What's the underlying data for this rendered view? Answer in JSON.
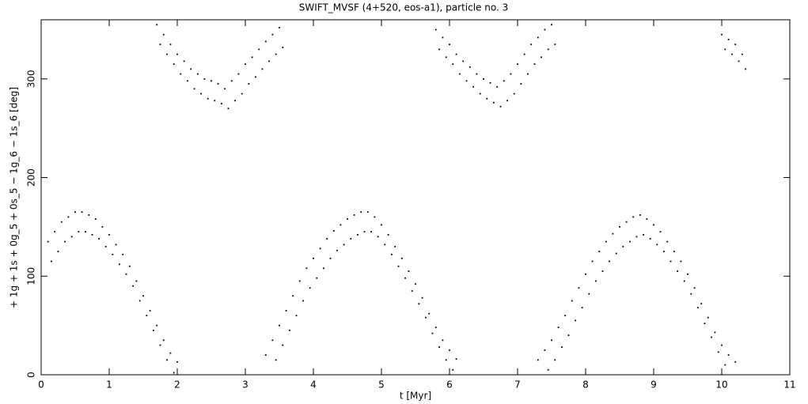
{
  "chart_data": {
    "type": "scatter",
    "title": "SWIFT_MVSF (4+520, eos-a1), particle no. 3",
    "x_label": "t [Myr]",
    "y_label": "+ 1g + 1s + 0g_5 + 0s_5 − 1g_6 − 1s_6 [deg]",
    "xlim": [
      0,
      11
    ],
    "ylim": [
      0,
      360
    ],
    "xticks": [
      0,
      1,
      2,
      3,
      4,
      5,
      6,
      7,
      8,
      9,
      10,
      11
    ],
    "yticks": [
      0,
      100,
      200,
      300
    ],
    "color": "#000000",
    "x": [
      0.1,
      0.2,
      0.3,
      0.4,
      0.5,
      0.6,
      0.7,
      0.8,
      0.9,
      1.0,
      1.1,
      1.2,
      1.3,
      1.4,
      1.5,
      1.6,
      1.7,
      1.8,
      1.9,
      2.0,
      0.15,
      0.25,
      0.35,
      0.45,
      0.55,
      0.65,
      0.75,
      0.85,
      0.95,
      1.05,
      1.15,
      1.25,
      1.35,
      1.45,
      1.55,
      1.65,
      1.75,
      1.85,
      1.95,
      1.7,
      1.8,
      1.9,
      2.0,
      2.1,
      2.2,
      2.3,
      2.4,
      2.5,
      2.6,
      2.7,
      2.8,
      2.9,
      3.0,
      3.1,
      3.2,
      3.3,
      3.4,
      3.5,
      1.75,
      1.85,
      1.95,
      2.05,
      2.15,
      2.25,
      2.35,
      2.45,
      2.55,
      2.65,
      2.75,
      2.85,
      2.95,
      3.05,
      3.15,
      3.25,
      3.35,
      3.45,
      3.55,
      3.3,
      3.4,
      3.5,
      3.6,
      3.7,
      3.8,
      3.9,
      4.0,
      4.1,
      4.2,
      4.3,
      4.4,
      4.5,
      4.6,
      4.7,
      4.8,
      4.9,
      5.0,
      5.1,
      5.2,
      5.3,
      5.4,
      5.5,
      5.6,
      5.7,
      5.8,
      5.9,
      6.0,
      6.1,
      3.45,
      3.55,
      3.65,
      3.75,
      3.85,
      3.95,
      4.05,
      4.15,
      4.25,
      4.35,
      4.45,
      4.55,
      4.65,
      4.75,
      4.85,
      4.95,
      5.05,
      5.15,
      5.25,
      5.35,
      5.45,
      5.55,
      5.65,
      5.75,
      5.85,
      5.95,
      6.05,
      5.8,
      5.9,
      6.0,
      6.1,
      6.2,
      6.3,
      6.4,
      6.5,
      6.6,
      6.7,
      6.8,
      6.9,
      7.0,
      7.1,
      7.2,
      7.3,
      7.4,
      7.5,
      5.85,
      5.95,
      6.05,
      6.15,
      6.25,
      6.35,
      6.45,
      6.55,
      6.65,
      6.75,
      6.85,
      6.95,
      7.05,
      7.15,
      7.25,
      7.35,
      7.45,
      7.55,
      7.3,
      7.4,
      7.5,
      7.6,
      7.7,
      7.8,
      7.9,
      8.0,
      8.1,
      8.2,
      8.3,
      8.4,
      8.5,
      8.6,
      8.7,
      8.8,
      8.9,
      9.0,
      9.1,
      9.2,
      9.3,
      9.4,
      9.5,
      9.6,
      9.7,
      9.8,
      9.9,
      10.0,
      10.1,
      10.2,
      7.45,
      7.55,
      7.65,
      7.75,
      7.85,
      7.95,
      8.05,
      8.15,
      8.25,
      8.35,
      8.45,
      8.55,
      8.65,
      8.75,
      8.85,
      8.95,
      9.05,
      9.15,
      9.25,
      9.35,
      9.45,
      9.55,
      9.65,
      9.75,
      9.85,
      9.95,
      10.05,
      10.0,
      10.1,
      10.2,
      10.3,
      10.05,
      10.15,
      10.25,
      10.35
    ],
    "values": [
      135,
      145,
      155,
      160,
      165,
      165,
      162,
      158,
      150,
      142,
      132,
      122,
      110,
      95,
      80,
      65,
      50,
      35,
      22,
      13,
      115,
      125,
      135,
      140,
      145,
      145,
      142,
      138,
      130,
      122,
      112,
      102,
      90,
      75,
      60,
      45,
      30,
      15,
      2,
      355,
      345,
      335,
      325,
      318,
      310,
      305,
      300,
      298,
      295,
      290,
      298,
      305,
      315,
      322,
      330,
      338,
      345,
      352,
      335,
      325,
      315,
      305,
      298,
      290,
      285,
      280,
      278,
      275,
      270,
      278,
      285,
      295,
      302,
      310,
      318,
      325,
      332,
      20,
      35,
      50,
      65,
      80,
      95,
      108,
      118,
      128,
      138,
      146,
      152,
      158,
      162,
      165,
      165,
      160,
      152,
      142,
      130,
      118,
      105,
      92,
      78,
      62,
      48,
      35,
      25,
      16,
      15,
      30,
      45,
      60,
      75,
      88,
      98,
      108,
      118,
      126,
      132,
      138,
      142,
      145,
      145,
      140,
      132,
      122,
      110,
      98,
      85,
      72,
      58,
      42,
      28,
      15,
      5,
      350,
      342,
      335,
      325,
      318,
      312,
      305,
      300,
      296,
      292,
      298,
      305,
      315,
      325,
      335,
      342,
      350,
      355,
      330,
      322,
      315,
      305,
      298,
      292,
      285,
      280,
      276,
      272,
      278,
      285,
      295,
      305,
      315,
      322,
      330,
      335,
      15,
      25,
      35,
      48,
      60,
      75,
      88,
      102,
      115,
      125,
      135,
      143,
      150,
      155,
      160,
      162,
      158,
      152,
      145,
      135,
      125,
      115,
      102,
      88,
      72,
      58,
      43,
      30,
      20,
      13,
      5,
      15,
      28,
      40,
      55,
      68,
      82,
      95,
      105,
      115,
      123,
      130,
      135,
      140,
      142,
      138,
      132,
      125,
      115,
      105,
      95,
      82,
      68,
      52,
      38,
      23,
      10,
      345,
      340,
      335,
      325,
      330,
      325,
      318,
      310
    ]
  }
}
